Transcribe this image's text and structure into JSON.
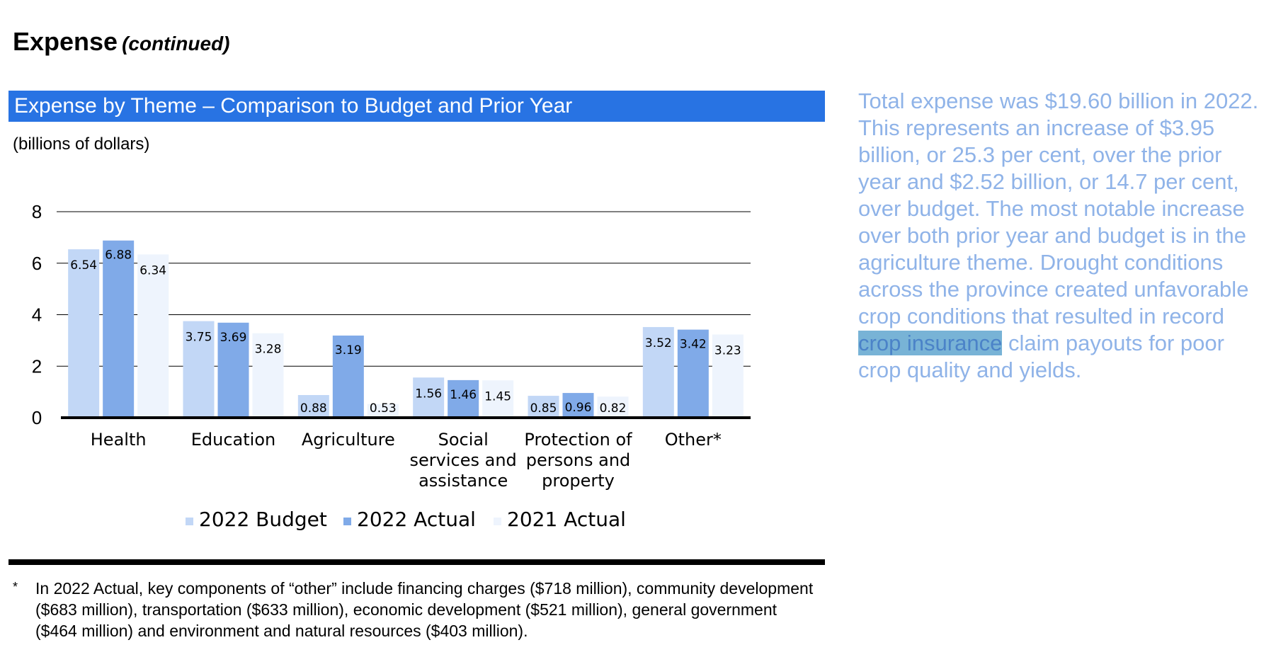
{
  "heading": {
    "title": "Expense",
    "continued": "(continued)"
  },
  "banner": {
    "title": "Expense by Theme – Comparison to Budget and Prior Year"
  },
  "units": "(billions of dollars)",
  "colors": {
    "banner": "#2873e3",
    "series_2022_budget": "#c2d7f6",
    "series_2022_actual": "#80aae8",
    "series_2021_actual": "#eef4fd",
    "side_text": "#8fb3e8",
    "highlight": "#78b3d6"
  },
  "chart_data": {
    "type": "bar",
    "categories": [
      [
        "Health"
      ],
      [
        "Education"
      ],
      [
        "Agriculture"
      ],
      [
        "Social",
        "services and",
        "assistance"
      ],
      [
        "Protection of",
        "persons and",
        "property"
      ],
      [
        "Other*"
      ]
    ],
    "series": [
      {
        "name": "2022 Budget",
        "values": [
          6.54,
          3.75,
          0.88,
          1.56,
          0.85,
          3.52
        ]
      },
      {
        "name": "2022 Actual",
        "values": [
          6.88,
          3.69,
          3.19,
          1.46,
          0.96,
          3.42
        ]
      },
      {
        "name": "2021 Actual",
        "values": [
          6.34,
          3.28,
          0.53,
          1.45,
          0.82,
          3.23
        ]
      }
    ],
    "value_labels": [
      [
        "6.54",
        "3.75",
        "0.88",
        "1.56",
        "0.85",
        "3.52"
      ],
      [
        "6.88",
        "3.69",
        "3.19",
        "1.46",
        "0.96",
        "3.42"
      ],
      [
        "6.34",
        "3.28",
        "0.53",
        "1.45",
        "0.82",
        "3.23"
      ]
    ],
    "yticks": [
      0,
      2,
      4,
      6,
      8
    ],
    "ylim": [
      0,
      8
    ],
    "grid": true,
    "legend": "bottom"
  },
  "footnote": {
    "mark": "*",
    "text": "In 2022 Actual, key components of “other” include financing charges ($718 million), community development ($683 million), transportation ($633 million), economic development ($521 million), general government ($464 million) and environment and natural resources ($403 million)."
  },
  "side": {
    "text_before": "Total expense was $19.60 billion in 2022. This represents an increase of $3.95 billion, or 25.3 per cent, over the prior year and $2.52 billion, or 14.7 per cent, over budget. The most notable increase over both prior year and budget is in the agriculture theme. Drought conditions across the province created unfavorable crop conditions that resulted in record ",
    "highlight": "crop insurance",
    "text_after": " claim payouts for poor crop quality and yields."
  }
}
